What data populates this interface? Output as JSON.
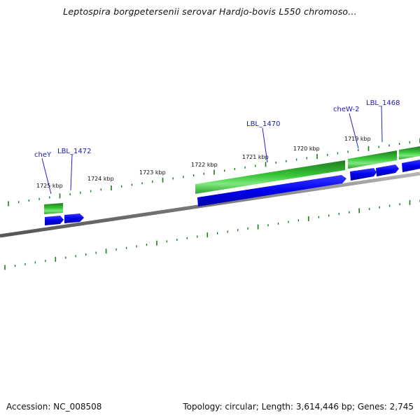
{
  "title": "Leptospira borgpetersenii serovar Hardjo-bovis L550 chromoso...",
  "footer": {
    "accession": "Accession: NC_008508",
    "summary": "Topology: circular; Length: 3,614,446 bp; Genes: 2,745"
  },
  "scale_labels": [
    "1725 kbp",
    "1724 kbp",
    "1723 kbp",
    "1722 kbp",
    "1721 kbp",
    "1720 kbp",
    "1719 kbp"
  ],
  "gene_labels": [
    "cheY",
    "LBL_1472",
    "LBL_1470",
    "cheW-2",
    "LBL_1468"
  ],
  "colors": {
    "backbone": "#808080",
    "gene_green": "#33cc33",
    "gene_green_dark": "#1f7a1f",
    "gene_blue": "#0000ee",
    "tick": "#1a7a1a",
    "label_line": "#2222cc"
  }
}
